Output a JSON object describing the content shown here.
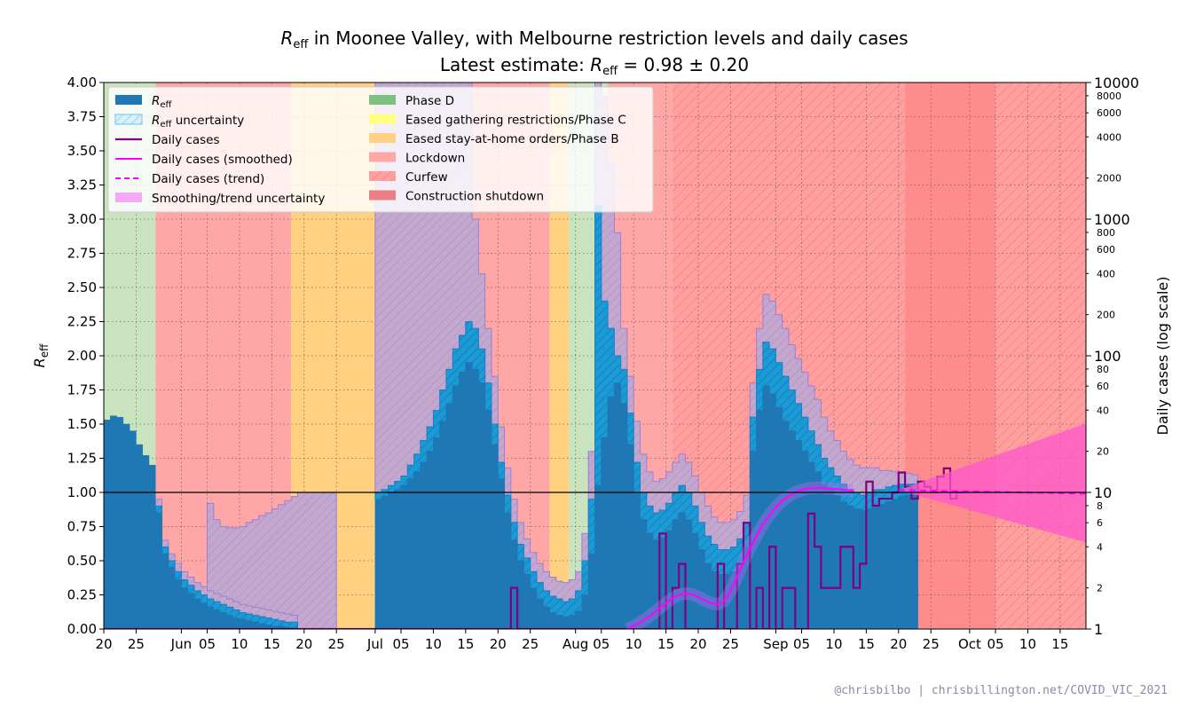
{
  "chart_data": {
    "type": "step",
    "title_main": "R",
    "title_sub": "eff",
    "title_rest": " in Moonee Valley, with Melbourne restriction levels and daily cases",
    "subtitle_prefix": "Latest estimate: ",
    "subtitle_r": "R",
    "subtitle_r_sub": "eff",
    "subtitle_value": " = 0.98 ± 0.20",
    "ylabel_main": "R",
    "ylabel_sub": "eff",
    "ylabel_right": "Daily cases (log scale)",
    "x_start": "2021-05-20",
    "x_end": "2021-10-19",
    "x_ticks": [
      {
        "date": "2021-05-20",
        "label": "20"
      },
      {
        "date": "2021-05-25",
        "label": "25"
      },
      {
        "date": "2021-06-01",
        "label": "Jun"
      },
      {
        "date": "2021-06-05",
        "label": "05"
      },
      {
        "date": "2021-06-10",
        "label": "10"
      },
      {
        "date": "2021-06-15",
        "label": "15"
      },
      {
        "date": "2021-06-20",
        "label": "20"
      },
      {
        "date": "2021-06-25",
        "label": "25"
      },
      {
        "date": "2021-07-01",
        "label": "Jul"
      },
      {
        "date": "2021-07-05",
        "label": "05"
      },
      {
        "date": "2021-07-10",
        "label": "10"
      },
      {
        "date": "2021-07-15",
        "label": "15"
      },
      {
        "date": "2021-07-20",
        "label": "20"
      },
      {
        "date": "2021-07-25",
        "label": "25"
      },
      {
        "date": "2021-08-01",
        "label": "Aug"
      },
      {
        "date": "2021-08-05",
        "label": "05"
      },
      {
        "date": "2021-08-10",
        "label": "10"
      },
      {
        "date": "2021-08-15",
        "label": "15"
      },
      {
        "date": "2021-08-20",
        "label": "20"
      },
      {
        "date": "2021-08-25",
        "label": "25"
      },
      {
        "date": "2021-09-01",
        "label": "Sep"
      },
      {
        "date": "2021-09-05",
        "label": "05"
      },
      {
        "date": "2021-09-10",
        "label": "10"
      },
      {
        "date": "2021-09-15",
        "label": "15"
      },
      {
        "date": "2021-09-20",
        "label": "20"
      },
      {
        "date": "2021-09-25",
        "label": "25"
      },
      {
        "date": "2021-10-01",
        "label": "Oct"
      },
      {
        "date": "2021-10-05",
        "label": "05"
      },
      {
        "date": "2021-10-10",
        "label": "10"
      },
      {
        "date": "2021-10-15",
        "label": "15"
      }
    ],
    "y_left": {
      "min": 0,
      "max": 4,
      "ticks": [
        "0.00",
        "0.25",
        "0.50",
        "0.75",
        "1.00",
        "1.25",
        "1.50",
        "1.75",
        "2.00",
        "2.25",
        "2.50",
        "2.75",
        "3.00",
        "3.25",
        "3.50",
        "3.75",
        "4.00"
      ]
    },
    "y_right": {
      "scale": "log",
      "min": 1,
      "max": 10000,
      "major_ticks": [
        {
          "v": 1,
          "label": "1"
        },
        {
          "v": 10,
          "label": "10"
        },
        {
          "v": 100,
          "label": "100"
        },
        {
          "v": 1000,
          "label": "1000"
        },
        {
          "v": 10000,
          "label": "10000"
        }
      ],
      "minor_ticks": [
        {
          "v": 2,
          "label": "2"
        },
        {
          "v": 4,
          "label": "4"
        },
        {
          "v": 6,
          "label": "6"
        },
        {
          "v": 8,
          "label": "8"
        },
        {
          "v": 20,
          "label": "20"
        },
        {
          "v": 40,
          "label": "40"
        },
        {
          "v": 60,
          "label": "60"
        },
        {
          "v": 80,
          "label": "80"
        },
        {
          "v": 200,
          "label": "200"
        },
        {
          "v": 400,
          "label": "400"
        },
        {
          "v": 600,
          "label": "600"
        },
        {
          "v": 800,
          "label": "800"
        },
        {
          "v": 2000,
          "label": "2000"
        },
        {
          "v": 4000,
          "label": "4000"
        },
        {
          "v": 6000,
          "label": "6000"
        },
        {
          "v": 8000,
          "label": "8000"
        }
      ]
    },
    "restrictions": [
      {
        "start": "2021-05-20",
        "end": "2021-05-28",
        "type": "phase_d"
      },
      {
        "start": "2021-05-28",
        "end": "2021-06-18",
        "type": "lockdown"
      },
      {
        "start": "2021-06-18",
        "end": "2021-07-01",
        "type": "eased_stay_at_home"
      },
      {
        "start": "2021-07-01",
        "end": "2021-07-15",
        "type": "phase_d"
      },
      {
        "start": "2021-07-15",
        "end": "2021-07-16",
        "type": "eased_gathering"
      },
      {
        "start": "2021-07-16",
        "end": "2021-07-28",
        "type": "lockdown"
      },
      {
        "start": "2021-07-28",
        "end": "2021-07-31",
        "type": "eased_stay_at_home"
      },
      {
        "start": "2021-07-31",
        "end": "2021-08-06",
        "type": "phase_d"
      },
      {
        "start": "2021-08-06",
        "end": "2021-08-16",
        "type": "lockdown"
      },
      {
        "start": "2021-08-16",
        "end": "2021-09-21",
        "type": "curfew"
      },
      {
        "start": "2021-09-21",
        "end": "2021-10-05",
        "type": "construction_shutdown"
      },
      {
        "start": "2021-10-05",
        "end": "2021-10-19",
        "type": "curfew"
      }
    ],
    "r_eff": {
      "start": "2021-05-20",
      "values": [
        1.53,
        1.56,
        1.55,
        1.5,
        1.45,
        1.35,
        1.27,
        1.2,
        0.85,
        0.55,
        0.45,
        0.36,
        0.3,
        0.26,
        0.22,
        0.19,
        0.16,
        0.14,
        0.12,
        0.1,
        0.08,
        0.07,
        0.06,
        0.05,
        0.04,
        0.03,
        0.02,
        0.02,
        0.01,
        0.01,
        null,
        null,
        null,
        null,
        null,
        null,
        null,
        null,
        null,
        null,
        null,
        null,
        0.95,
        0.97,
        1.0,
        1.02,
        1.05,
        1.1,
        1.15,
        1.22,
        1.3,
        1.4,
        1.52,
        1.65,
        1.78,
        1.88,
        1.95,
        1.9,
        1.8,
        1.6,
        1.35,
        1.1,
        0.85,
        0.65,
        0.5,
        0.4,
        0.3,
        0.22,
        0.16,
        0.12,
        0.1,
        0.09,
        0.1,
        0.13,
        0.25,
        0.55,
        1.05,
        1.4,
        1.7,
        1.8,
        1.65,
        1.35,
        1.0,
        0.8,
        0.7,
        0.65,
        0.67,
        0.72,
        0.8,
        0.85,
        0.8,
        0.7,
        0.58,
        0.48,
        0.42,
        0.4,
        0.4,
        0.42,
        0.48,
        0.6,
        1.3,
        1.6,
        1.78,
        1.72,
        1.62,
        1.52,
        1.45,
        1.38,
        1.3,
        1.22,
        1.15,
        1.06,
        1.02,
        0.98,
        0.93,
        0.9,
        0.88,
        0.87,
        0.88,
        0.9,
        0.91,
        0.93,
        0.95,
        0.97,
        0.98,
        0.98,
        null
      ],
      "lower": [
        null,
        null,
        null,
        null,
        null,
        null,
        null,
        null,
        0.9,
        0.6,
        0.5,
        0.42,
        0.36,
        0.32,
        0.28,
        0.25,
        0.22,
        0.2,
        0.18,
        0.16,
        0.14,
        0.12,
        0.11,
        0.1,
        0.09,
        0.08,
        0.07,
        0.06,
        0.05,
        0.05,
        null,
        null,
        null,
        null,
        null,
        null,
        null,
        null,
        null,
        null,
        null,
        null,
        1.0,
        1.02,
        1.05,
        1.08,
        1.12,
        1.2,
        1.28,
        1.38,
        1.48,
        1.6,
        1.75,
        1.9,
        2.05,
        2.15,
        2.25,
        2.2,
        2.05,
        1.8,
        1.5,
        1.22,
        0.98,
        0.78,
        0.62,
        0.52,
        0.42,
        0.34,
        0.28,
        0.24,
        0.22,
        0.2,
        0.22,
        0.28,
        0.5,
        0.95,
        3.1,
        2.4,
        2.2,
        2.0,
        1.9,
        1.58,
        1.22,
        1.0,
        0.9,
        0.85,
        0.87,
        0.92,
        1.0,
        1.05,
        1.0,
        0.9,
        0.78,
        0.68,
        0.62,
        0.58,
        0.58,
        0.6,
        0.66,
        0.78,
        1.55,
        1.9,
        2.1,
        2.05,
        1.95,
        1.85,
        1.75,
        1.65,
        1.55,
        1.45,
        1.35,
        1.25,
        1.18,
        1.12,
        1.06,
        1.02,
        1.0,
        0.98,
        1.0,
        1.02,
        1.02,
        1.04,
        1.05,
        1.06,
        1.06,
        1.06,
        null
      ],
      "upper": [
        4.0,
        4.0,
        4.0,
        4.0,
        4.0,
        2.2,
        2.0,
        1.62,
        0.95,
        0.65,
        0.55,
        0.48,
        0.42,
        0.38,
        0.34,
        0.31,
        0.28,
        0.26,
        0.24,
        0.22,
        0.2,
        0.18,
        0.17,
        0.16,
        0.15,
        0.14,
        0.13,
        0.12,
        0.11,
        0.1,
        null,
        null,
        null,
        null,
        null,
        null,
        null,
        null,
        null,
        null,
        null,
        null,
        4.0,
        4.0,
        4.0,
        4.0,
        4.0,
        4.0,
        4.0,
        4.0,
        4.0,
        4.0,
        4.0,
        4.0,
        4.0,
        4.0,
        4.0,
        3.0,
        2.6,
        2.2,
        1.85,
        1.48,
        1.18,
        0.95,
        0.78,
        0.66,
        0.56,
        0.48,
        0.42,
        0.38,
        0.35,
        0.34,
        0.36,
        0.42,
        0.7,
        1.3,
        4.0,
        3.9,
        3.4,
        2.9,
        2.2,
        1.85,
        1.52,
        1.28,
        1.15,
        1.08,
        1.1,
        1.15,
        1.22,
        1.28,
        1.22,
        1.12,
        1.0,
        0.9,
        0.82,
        0.78,
        0.78,
        0.8,
        0.86,
        0.98,
        1.8,
        2.2,
        2.45,
        2.4,
        2.3,
        2.2,
        2.08,
        1.98,
        1.88,
        1.78,
        1.68,
        1.55,
        1.45,
        1.38,
        1.3,
        1.24,
        1.2,
        1.18,
        1.18,
        1.18,
        1.16,
        1.16,
        1.15,
        1.14,
        1.14,
        1.13,
        null
      ],
      "trend_upper": [
        null,
        null,
        null,
        null,
        null,
        null,
        null,
        null,
        0.92,
        0.8,
        0.75,
        0.74,
        0.74,
        0.75,
        0.78,
        0.8,
        0.83,
        0.85,
        0.88,
        0.91,
        0.94,
        0.97,
        1.0,
        1.0,
        1.0,
        1.0,
        1.0,
        1.0,
        null,
        null
      ],
      "trend_start": "2021-05-28"
    },
    "daily_cases": {
      "start": "2021-05-20",
      "values": [
        0,
        0,
        0,
        0,
        0,
        0,
        1,
        1,
        0,
        0,
        0,
        0,
        0,
        0,
        0,
        0,
        0,
        0,
        0,
        0,
        0,
        0,
        0,
        0,
        0,
        0,
        0,
        0,
        0,
        0,
        0,
        0,
        0,
        0,
        0,
        0,
        0,
        0,
        0,
        0,
        0,
        0,
        0,
        0,
        0,
        0,
        0,
        0,
        0,
        0,
        0,
        0,
        0,
        0,
        0,
        1,
        0,
        0,
        0,
        1,
        0,
        0,
        0,
        2,
        0,
        0,
        0,
        0,
        0,
        1,
        0,
        0,
        0,
        0,
        0,
        0,
        0,
        0,
        0,
        0,
        0,
        0,
        0,
        0,
        0,
        1,
        5,
        1,
        2,
        3,
        1,
        1,
        1,
        1,
        1,
        3,
        1,
        1,
        3,
        6,
        1,
        2,
        1,
        4,
        1,
        2,
        2,
        1,
        1,
        7,
        4,
        2,
        2,
        2,
        4,
        4,
        2,
        3,
        12,
        8,
        9,
        9,
        10,
        14,
        11,
        9,
        12,
        11,
        10,
        13,
        15,
        9,
        10
      ]
    },
    "smoothed_cases": {
      "start": "2021-08-09",
      "values": [
        1.0,
        1.05,
        1.12,
        1.2,
        1.3,
        1.42,
        1.55,
        1.68,
        1.78,
        1.82,
        1.8,
        1.72,
        1.62,
        1.55,
        1.52,
        1.6,
        1.9,
        2.4,
        3.1,
        3.9,
        4.8,
        5.8,
        6.8,
        7.8,
        8.7,
        9.4,
        10.0,
        10.4,
        10.7,
        10.8,
        10.8,
        10.7,
        10.6,
        10.5,
        10.4,
        10.3
      ]
    },
    "trend_cases": {
      "start": "2021-09-20",
      "end": "2021-10-19",
      "start_value": 10.4,
      "end_value": 9.8,
      "band_lower_end": 4.3,
      "band_upper_end": 32
    },
    "legend_left": [
      {
        "key": "r_eff",
        "label_main": "R",
        "label_sub": "eff",
        "label_rest": ""
      },
      {
        "key": "r_eff_unc",
        "label_main": "R",
        "label_sub": "eff",
        "label_rest": " uncertainty"
      },
      {
        "key": "daily",
        "label": "Daily cases"
      },
      {
        "key": "smoothed",
        "label": "Daily cases (smoothed)"
      },
      {
        "key": "trend",
        "label": "Daily cases (trend)"
      },
      {
        "key": "trend_unc",
        "label": "Smoothing/trend uncertainty"
      }
    ],
    "legend_right": [
      {
        "key": "phase_d",
        "label": "Phase D"
      },
      {
        "key": "eased_gathering",
        "label": "Eased gathering restrictions/Phase C"
      },
      {
        "key": "eased_stay_at_home",
        "label": "Eased stay-at-home orders/Phase B"
      },
      {
        "key": "lockdown",
        "label": "Lockdown"
      },
      {
        "key": "curfew",
        "label": "Curfew"
      },
      {
        "key": "construction_shutdown",
        "label": "Construction shutdown"
      }
    ],
    "colors": {
      "phase_d": "#c9e3bf",
      "eased_gathering": "#ffffb8",
      "eased_stay_at_home": "#ffd080",
      "lockdown": "#ffa7a7",
      "curfew": "#ffa0a0",
      "construction_shutdown": "#ff8c8c",
      "r_eff": "#1f77b4",
      "r_eff_unc": "#1a9bd6",
      "daily": "#800080",
      "smoothed": "#ff00ff",
      "trend_band": "#ff55cc",
      "trend_unc": "#c4a8cc"
    },
    "credit": "@chrisbilbo | chrisbillington.net/COVID_VIC_2021"
  }
}
